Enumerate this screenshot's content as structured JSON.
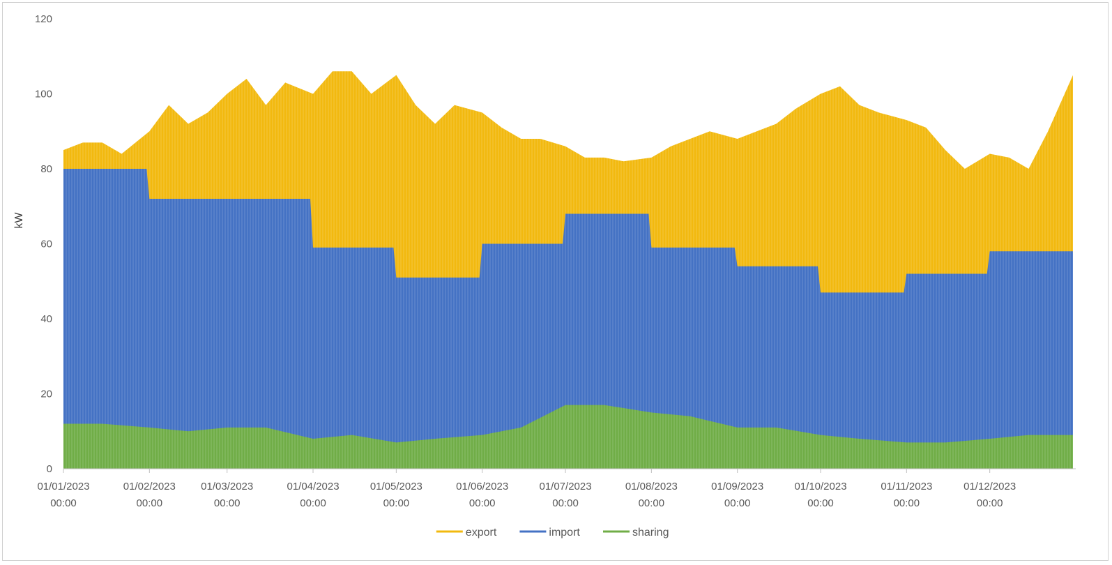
{
  "colors": {
    "export": "#f2b90f",
    "import": "#4472c4",
    "sharing": "#70ad47",
    "axis": "#bfbfbf",
    "text": "#595959"
  },
  "chart_data": {
    "type": "area",
    "title": "",
    "xlabel": "",
    "ylabel": "kW",
    "ylim": [
      0,
      120
    ],
    "yticks": [
      0,
      20,
      40,
      60,
      80,
      100,
      120
    ],
    "xlim": [
      "2023-01-01",
      "2024-01-01"
    ],
    "xticks": [
      {
        "date": "2023-01-01",
        "line1": "01/01/2023",
        "line2": "00:00"
      },
      {
        "date": "2023-02-01",
        "line1": "01/02/2023",
        "line2": "00:00"
      },
      {
        "date": "2023-03-01",
        "line1": "01/03/2023",
        "line2": "00:00"
      },
      {
        "date": "2023-04-01",
        "line1": "01/04/2023",
        "line2": "00:00"
      },
      {
        "date": "2023-05-01",
        "line1": "01/05/2023",
        "line2": "00:00"
      },
      {
        "date": "2023-06-01",
        "line1": "01/06/2023",
        "line2": "00:00"
      },
      {
        "date": "2023-07-01",
        "line1": "01/07/2023",
        "line2": "00:00"
      },
      {
        "date": "2023-08-01",
        "line1": "01/08/2023",
        "line2": "00:00"
      },
      {
        "date": "2023-09-01",
        "line1": "01/09/2023",
        "line2": "00:00"
      },
      {
        "date": "2023-10-01",
        "line1": "01/10/2023",
        "line2": "00:00"
      },
      {
        "date": "2023-11-01",
        "line1": "01/11/2023",
        "line2": "00:00"
      },
      {
        "date": "2023-12-01",
        "line1": "01/12/2023",
        "line2": "00:00"
      }
    ],
    "grid": false,
    "legend_position": "bottom",
    "series": [
      {
        "name": "export",
        "color": "#f2b90f",
        "points": [
          [
            "2023-01-01",
            85
          ],
          [
            "2023-01-08",
            87
          ],
          [
            "2023-01-15",
            87
          ],
          [
            "2023-01-22",
            84
          ],
          [
            "2023-02-01",
            90
          ],
          [
            "2023-02-08",
            97
          ],
          [
            "2023-02-15",
            92
          ],
          [
            "2023-02-22",
            95
          ],
          [
            "2023-03-01",
            100
          ],
          [
            "2023-03-08",
            104
          ],
          [
            "2023-03-15",
            97
          ],
          [
            "2023-03-22",
            103
          ],
          [
            "2023-04-01",
            100
          ],
          [
            "2023-04-08",
            106
          ],
          [
            "2023-04-15",
            106
          ],
          [
            "2023-04-22",
            100
          ],
          [
            "2023-05-01",
            105
          ],
          [
            "2023-05-08",
            97
          ],
          [
            "2023-05-15",
            92
          ],
          [
            "2023-05-22",
            97
          ],
          [
            "2023-06-01",
            95
          ],
          [
            "2023-06-08",
            91
          ],
          [
            "2023-06-15",
            88
          ],
          [
            "2023-06-22",
            88
          ],
          [
            "2023-07-01",
            86
          ],
          [
            "2023-07-08",
            83
          ],
          [
            "2023-07-15",
            83
          ],
          [
            "2023-07-22",
            82
          ],
          [
            "2023-08-01",
            83
          ],
          [
            "2023-08-08",
            86
          ],
          [
            "2023-08-15",
            88
          ],
          [
            "2023-08-22",
            90
          ],
          [
            "2023-09-01",
            88
          ],
          [
            "2023-09-08",
            90
          ],
          [
            "2023-09-15",
            92
          ],
          [
            "2023-09-22",
            96
          ],
          [
            "2023-10-01",
            100
          ],
          [
            "2023-10-08",
            102
          ],
          [
            "2023-10-15",
            97
          ],
          [
            "2023-10-22",
            95
          ],
          [
            "2023-11-01",
            93
          ],
          [
            "2023-11-08",
            91
          ],
          [
            "2023-11-15",
            85
          ],
          [
            "2023-11-22",
            80
          ],
          [
            "2023-12-01",
            84
          ],
          [
            "2023-12-08",
            83
          ],
          [
            "2023-12-15",
            80
          ],
          [
            "2023-12-22",
            90
          ],
          [
            "2023-12-31",
            105
          ]
        ]
      },
      {
        "name": "import",
        "color": "#4472c4",
        "points": [
          [
            "2023-01-01",
            80
          ],
          [
            "2023-01-15",
            80
          ],
          [
            "2023-01-31",
            80
          ],
          [
            "2023-02-01",
            72
          ],
          [
            "2023-02-15",
            72
          ],
          [
            "2023-02-28",
            72
          ],
          [
            "2023-03-01",
            72
          ],
          [
            "2023-03-15",
            72
          ],
          [
            "2023-03-31",
            72
          ],
          [
            "2023-04-01",
            59
          ],
          [
            "2023-04-15",
            59
          ],
          [
            "2023-04-30",
            59
          ],
          [
            "2023-05-01",
            51
          ],
          [
            "2023-05-15",
            51
          ],
          [
            "2023-05-31",
            51
          ],
          [
            "2023-06-01",
            60
          ],
          [
            "2023-06-15",
            60
          ],
          [
            "2023-06-30",
            60
          ],
          [
            "2023-07-01",
            68
          ],
          [
            "2023-07-15",
            68
          ],
          [
            "2023-07-31",
            68
          ],
          [
            "2023-08-01",
            59
          ],
          [
            "2023-08-15",
            59
          ],
          [
            "2023-08-31",
            59
          ],
          [
            "2023-09-01",
            54
          ],
          [
            "2023-09-15",
            54
          ],
          [
            "2023-09-30",
            54
          ],
          [
            "2023-10-01",
            47
          ],
          [
            "2023-10-15",
            47
          ],
          [
            "2023-10-31",
            47
          ],
          [
            "2023-11-01",
            52
          ],
          [
            "2023-11-15",
            52
          ],
          [
            "2023-11-30",
            52
          ],
          [
            "2023-12-01",
            58
          ],
          [
            "2023-12-15",
            58
          ],
          [
            "2023-12-31",
            58
          ]
        ]
      },
      {
        "name": "sharing",
        "color": "#70ad47",
        "points": [
          [
            "2023-01-01",
            12
          ],
          [
            "2023-01-15",
            12
          ],
          [
            "2023-02-01",
            11
          ],
          [
            "2023-02-15",
            10
          ],
          [
            "2023-03-01",
            11
          ],
          [
            "2023-03-15",
            11
          ],
          [
            "2023-04-01",
            8
          ],
          [
            "2023-04-15",
            9
          ],
          [
            "2023-05-01",
            7
          ],
          [
            "2023-05-15",
            8
          ],
          [
            "2023-06-01",
            9
          ],
          [
            "2023-06-15",
            11
          ],
          [
            "2023-07-01",
            17
          ],
          [
            "2023-07-15",
            17
          ],
          [
            "2023-08-01",
            15
          ],
          [
            "2023-08-15",
            14
          ],
          [
            "2023-09-01",
            11
          ],
          [
            "2023-09-15",
            11
          ],
          [
            "2023-10-01",
            9
          ],
          [
            "2023-10-15",
            8
          ],
          [
            "2023-11-01",
            7
          ],
          [
            "2023-11-15",
            7
          ],
          [
            "2023-12-01",
            8
          ],
          [
            "2023-12-15",
            9
          ],
          [
            "2023-12-31",
            9
          ]
        ]
      }
    ]
  }
}
